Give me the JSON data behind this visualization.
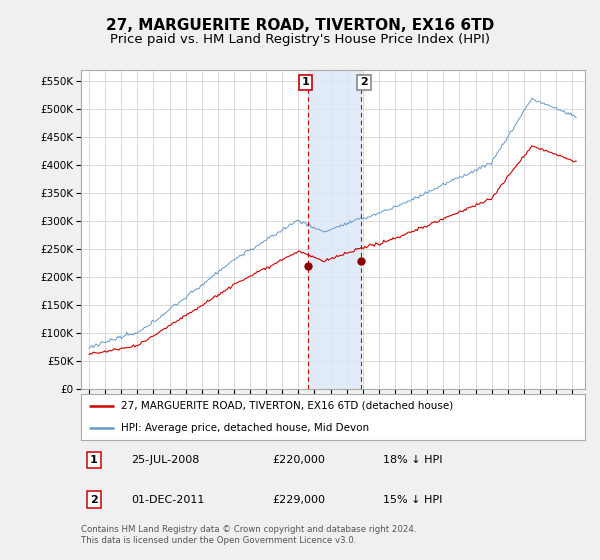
{
  "title": "27, MARGUERITE ROAD, TIVERTON, EX16 6TD",
  "subtitle": "Price paid vs. HM Land Registry's House Price Index (HPI)",
  "ytick_values": [
    0,
    50000,
    100000,
    150000,
    200000,
    250000,
    300000,
    350000,
    400000,
    450000,
    500000,
    550000
  ],
  "ylim": [
    0,
    570000
  ],
  "purchase1_x": 2008.583,
  "purchase1_y": 220000,
  "purchase2_x": 2011.917,
  "purchase2_y": 229000,
  "legend_red_label": "27, MARGUERITE ROAD, TIVERTON, EX16 6TD (detached house)",
  "legend_blue_label": "HPI: Average price, detached house, Mid Devon",
  "footer": "Contains HM Land Registry data © Crown copyright and database right 2024.\nThis data is licensed under the Open Government Licence v3.0.",
  "bg_color": "#f0f0f0",
  "plot_bg_color": "#ffffff",
  "shade_color": "#dce9f7",
  "red_color": "#cc0000",
  "blue_color": "#6699cc",
  "grid_color": "#cccccc",
  "title_fontsize": 11,
  "subtitle_fontsize": 9.5,
  "xlim_left": 1994.5,
  "xlim_right": 2025.8
}
